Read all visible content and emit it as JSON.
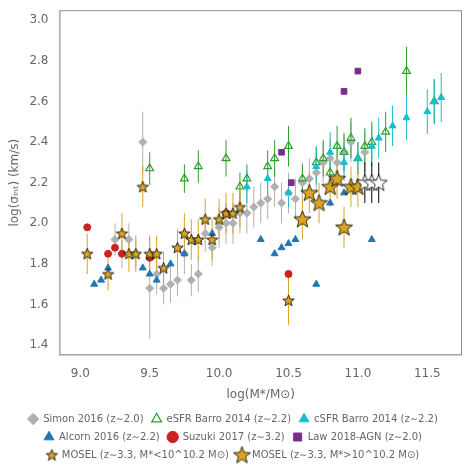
{
  "chart_data": {
    "type": "scatter",
    "x_label": "log(M*/M⊙)",
    "y_label": "log(σᵢₙₜ) (km/s)",
    "xlim": [
      8.85,
      11.75
    ],
    "ylim": [
      1.35,
      3.05
    ],
    "xticks": [
      {
        "value": 9.0,
        "label": "9.0"
      },
      9.5,
      {
        "value": 10.0,
        "label": "10.0"
      },
      10.5,
      {
        "value": 11.0,
        "label": "11.0"
      },
      11.5
    ],
    "yticks": [
      1.4,
      1.6,
      1.8,
      {
        "value": 2.0,
        "label": "2.0"
      },
      2.2,
      2.4,
      2.6,
      2.8,
      {
        "value": 3.0,
        "label": "3.0"
      }
    ],
    "grid": false,
    "legend": "bottom",
    "series": [
      {
        "name": "Simon 2016 (z∼2.0)",
        "color": "#b0b0b0",
        "marker": "diamond",
        "x": [
          9.25,
          9.3,
          9.35,
          9.4,
          9.45,
          9.5,
          9.55,
          9.6,
          9.65,
          9.7,
          9.75,
          9.8,
          9.85,
          9.9,
          9.95,
          10.0,
          10.05,
          10.1,
          10.15,
          10.2,
          10.25,
          10.3,
          10.35,
          10.4,
          10.45,
          10.5,
          10.55,
          10.6,
          10.65,
          10.7,
          10.75,
          10.8,
          10.85,
          10.9,
          10.95,
          11.05
        ],
        "values": [
          1.92,
          1.85,
          1.92,
          1.85,
          2.4,
          1.68,
          1.75,
          1.68,
          1.7,
          1.72,
          1.85,
          1.72,
          1.75,
          1.95,
          1.88,
          1.98,
          2.0,
          2.0,
          2.05,
          2.05,
          2.08,
          2.1,
          2.12,
          2.18,
          2.1,
          2.15,
          2.12,
          2.2,
          2.22,
          2.25,
          2.3,
          2.32,
          2.3,
          2.35,
          2.4,
          2.35
        ],
        "yerr_lo": [
          0.08,
          0.07,
          0.08,
          0.07,
          0.15,
          0.25,
          0.1,
          0.08,
          0.09,
          0.08,
          0.1,
          0.08,
          0.09,
          0.09,
          0.09,
          0.1,
          0.1,
          0.1,
          0.1,
          0.1,
          0.1,
          0.1,
          0.1,
          0.1,
          0.1,
          0.1,
          0.1,
          0.1,
          0.1,
          0.1,
          0.1,
          0.1,
          0.1,
          0.1,
          0.1,
          0.1
        ],
        "yerr_hi": [
          0.08,
          0.07,
          0.08,
          0.07,
          0.15,
          0.25,
          0.1,
          0.08,
          0.09,
          0.08,
          0.1,
          0.08,
          0.09,
          0.09,
          0.09,
          0.1,
          0.1,
          0.1,
          0.1,
          0.1,
          0.1,
          0.1,
          0.1,
          0.1,
          0.1,
          0.1,
          0.1,
          0.1,
          0.1,
          0.1,
          0.1,
          0.1,
          0.1,
          0.1,
          0.1,
          0.1
        ]
      },
      {
        "name": "eSFR Barro 2014 (z∼2.2)",
        "color": "#2ca02c",
        "marker": "open_triangle",
        "x": [
          9.5,
          9.75,
          9.85,
          10.05,
          10.15,
          10.2,
          10.35,
          10.4,
          10.5,
          10.6,
          10.7,
          10.75,
          10.8,
          10.85,
          10.9,
          10.95,
          11.0,
          11.05,
          11.1,
          11.2,
          11.35,
          11.55
        ],
        "values": [
          2.27,
          2.22,
          2.28,
          2.32,
          2.18,
          2.22,
          2.28,
          2.32,
          2.38,
          2.22,
          2.3,
          2.32,
          2.25,
          2.38,
          2.35,
          2.42,
          2.32,
          2.38,
          2.4,
          2.45,
          2.75,
          2.6
        ],
        "yerr_lo": [
          0.08,
          0.07,
          0.08,
          0.09,
          0.07,
          0.07,
          0.08,
          0.09,
          0.1,
          0.07,
          0.08,
          0.09,
          0.07,
          0.1,
          0.09,
          0.1,
          0.08,
          0.09,
          0.1,
          0.1,
          0.12,
          0.11
        ],
        "yerr_hi": [
          0.08,
          0.07,
          0.08,
          0.09,
          0.07,
          0.07,
          0.08,
          0.09,
          0.1,
          0.07,
          0.08,
          0.09,
          0.07,
          0.1,
          0.09,
          0.1,
          0.08,
          0.09,
          0.1,
          0.1,
          0.12,
          0.11
        ]
      },
      {
        "name": "cSFR Barro 2014 (z∼2.2)",
        "color": "#17becf",
        "marker": "triangle",
        "x": [
          10.2,
          10.35,
          10.5,
          10.7,
          10.8,
          10.9,
          11.0,
          11.1,
          11.15,
          11.25,
          11.35,
          11.5,
          11.55,
          11.6
        ],
        "values": [
          2.18,
          2.22,
          2.15,
          2.28,
          2.35,
          2.3,
          2.32,
          2.38,
          2.42,
          2.48,
          2.52,
          2.55,
          2.6,
          2.62
        ],
        "yerr_lo": [
          0.08,
          0.08,
          0.07,
          0.09,
          0.1,
          0.09,
          0.08,
          0.1,
          0.1,
          0.1,
          0.11,
          0.11,
          0.11,
          0.12
        ],
        "yerr_hi": [
          0.08,
          0.08,
          0.07,
          0.09,
          0.1,
          0.09,
          0.08,
          0.1,
          0.1,
          0.1,
          0.11,
          0.11,
          0.11,
          0.12
        ]
      },
      {
        "name": "Alcorn 2016 (z∼2.2)",
        "color": "#1f77b4",
        "marker": "triangle",
        "x": [
          9.1,
          9.15,
          9.2,
          9.45,
          9.5,
          9.55,
          9.6,
          9.65,
          9.75,
          9.85,
          9.95,
          10.05,
          10.1,
          10.3,
          10.4,
          10.45,
          10.5,
          10.55,
          10.7,
          10.8,
          10.9,
          11.1
        ],
        "values": [
          1.7,
          1.72,
          1.78,
          1.78,
          1.75,
          1.72,
          1.78,
          1.8,
          1.85,
          1.92,
          1.95,
          2.05,
          2.05,
          1.92,
          1.85,
          1.88,
          1.9,
          1.92,
          1.7,
          2.1,
          2.15,
          1.92
        ]
      },
      {
        "name": "Suzuki 2017 (z∼3.2)",
        "color": "#cc2222",
        "marker": "circle",
        "x": [
          9.05,
          9.2,
          9.25,
          9.3,
          9.5,
          10.05,
          10.5
        ],
        "values": [
          1.98,
          1.85,
          1.88,
          1.85,
          1.83,
          2.05,
          1.75
        ]
      },
      {
        "name": "Law 2018-AGN (z∼2.0)",
        "color": "#7b2d8b",
        "marker": "square",
        "x": [
          10.45,
          10.52,
          10.9,
          11.0
        ],
        "values": [
          2.35,
          2.2,
          2.65,
          2.75
        ]
      },
      {
        "name": "MOSEL (z∼3.3, M*<10^10.2 M⊙)",
        "color": "#DAA520",
        "marker": "star",
        "x": [
          9.05,
          9.2,
          9.3,
          9.35,
          9.4,
          9.45,
          9.5,
          9.55,
          9.6,
          9.7,
          9.75,
          9.8,
          9.85,
          9.9,
          9.95,
          10.0,
          10.05,
          10.1,
          10.15,
          10.5
        ],
        "values": [
          1.85,
          1.75,
          1.95,
          1.85,
          1.85,
          2.18,
          1.85,
          1.85,
          1.78,
          1.88,
          1.95,
          1.92,
          1.92,
          2.02,
          1.92,
          2.02,
          2.05,
          2.05,
          2.08,
          1.62
        ],
        "yerr_lo": [
          0.1,
          0.08,
          0.1,
          0.09,
          0.09,
          0.1,
          0.09,
          0.09,
          0.08,
          0.09,
          0.1,
          0.1,
          0.1,
          0.1,
          0.1,
          0.1,
          0.1,
          0.1,
          0.1,
          0.12
        ],
        "yerr_hi": [
          0.1,
          0.08,
          0.1,
          0.09,
          0.09,
          0.1,
          0.09,
          0.09,
          0.08,
          0.09,
          0.1,
          0.1,
          0.1,
          0.1,
          0.1,
          0.1,
          0.1,
          0.1,
          0.1,
          0.12
        ]
      },
      {
        "name": "MOSEL (z∼3.3, M*>10^10.2 M⊙)",
        "color": "#DAA520",
        "marker": "big_star",
        "x": [
          10.6,
          10.65,
          10.72,
          10.8,
          10.85,
          10.9,
          10.95,
          11.0
        ],
        "values": [
          2.02,
          2.15,
          2.1,
          2.18,
          2.22,
          1.98,
          2.18,
          2.18
        ],
        "yerr_lo": [
          0.1,
          0.1,
          0.1,
          0.1,
          0.1,
          0.1,
          0.1,
          0.1
        ],
        "yerr_hi": [
          0.1,
          0.1,
          0.1,
          0.1,
          0.1,
          0.1,
          0.1,
          0.1
        ]
      },
      {
        "color": "#000000",
        "marker": "open_big_star",
        "x": [
          11.05,
          11.1,
          11.15
        ],
        "values": [
          2.2,
          2.2,
          2.2
        ],
        "yerr_lo": [
          0.1,
          0.1,
          0.1
        ],
        "yerr_hi": [
          0.1,
          0.1,
          0.1
        ]
      }
    ]
  }
}
